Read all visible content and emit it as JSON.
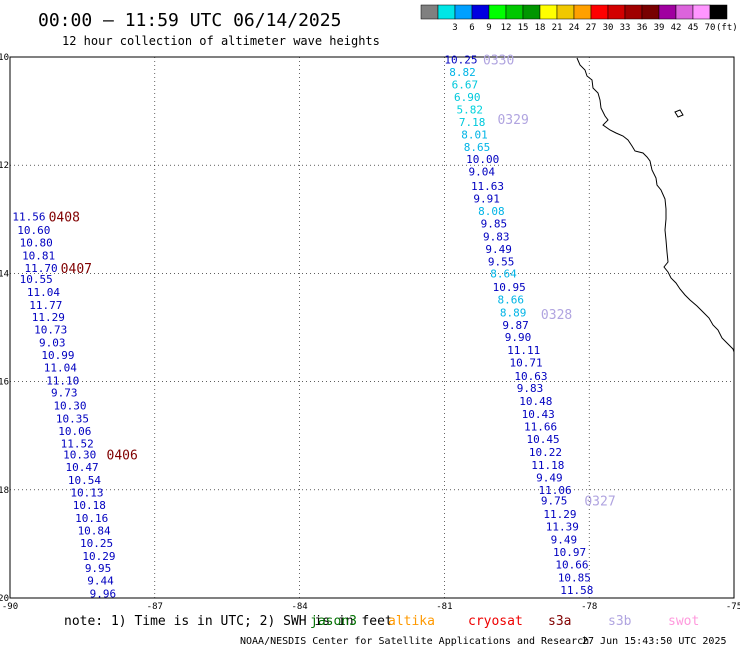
{
  "header": {
    "title": "00:00 – 11:59 UTC 06/14/2025",
    "subtitle": "12 hour collection of altimeter wave heights"
  },
  "legend": {
    "unit": "(ft)",
    "swatches": [
      {
        "color": "#808080",
        "label": ""
      },
      {
        "color": "#00e6e6",
        "label": "3"
      },
      {
        "color": "#00a0ff",
        "label": "6"
      },
      {
        "color": "#0000e0",
        "label": "9"
      },
      {
        "color": "#00ff00",
        "label": "12"
      },
      {
        "color": "#00c800",
        "label": "15"
      },
      {
        "color": "#009600",
        "label": "18"
      },
      {
        "color": "#ffff00",
        "label": "21"
      },
      {
        "color": "#f0c800",
        "label": "24"
      },
      {
        "color": "#ffa000",
        "label": "27"
      },
      {
        "color": "#ff0000",
        "label": "30"
      },
      {
        "color": "#d20000",
        "label": "33"
      },
      {
        "color": "#a00000",
        "label": "36"
      },
      {
        "color": "#780000",
        "label": "39"
      },
      {
        "color": "#a000a0",
        "label": "42"
      },
      {
        "color": "#dc64dc",
        "label": "45"
      },
      {
        "color": "#ff96ff",
        "label": "70"
      },
      {
        "color": "#000000",
        "label": ""
      }
    ]
  },
  "axes": {
    "lat_labels": [
      "-10",
      "-12",
      "-14",
      "-16",
      "-18",
      "-20"
    ],
    "lon_labels": [
      "-90",
      "-87",
      "-84",
      "-81",
      "-78",
      "-75"
    ]
  },
  "chart_data": {
    "type": "scatter",
    "x_range": [
      -90,
      -75
    ],
    "y_range": [
      -20,
      -10
    ],
    "grid": true,
    "tracks": [
      {
        "id": "0408",
        "color": "#800000",
        "label_lon": -89.2,
        "label_lat": -12.95
      },
      {
        "id": "0407",
        "color": "#800000",
        "label_lon": -88.95,
        "label_lat": -13.9
      },
      {
        "id": "0406",
        "color": "#800000",
        "label_lon": -88.0,
        "label_lat": -17.35
      },
      {
        "id": "0330",
        "color": "#b0a4e0",
        "label_lon": -80.2,
        "label_lat": -10.05
      },
      {
        "id": "0329",
        "color": "#b0a4e0",
        "label_lon": -79.9,
        "label_lat": -11.15
      },
      {
        "id": "0328",
        "color": "#b0a4e0",
        "label_lon": -79.0,
        "label_lat": -14.75
      },
      {
        "id": "0327",
        "color": "#b0a4e0",
        "label_lon": -78.1,
        "label_lat": -18.2
      }
    ],
    "points": [
      {
        "v": "10.25",
        "c": "#0000c0",
        "lon": -81.0,
        "lat": -10.05
      },
      {
        "v": "8.82",
        "c": "#00b4e6",
        "lon": -80.9,
        "lat": -10.28
      },
      {
        "v": "6.67",
        "c": "#00c8dc",
        "lon": -80.85,
        "lat": -10.51
      },
      {
        "v": "6.90",
        "c": "#00c8dc",
        "lon": -80.8,
        "lat": -10.74
      },
      {
        "v": "5.82",
        "c": "#00d2dc",
        "lon": -80.75,
        "lat": -10.97
      },
      {
        "v": "7.18",
        "c": "#00c8dc",
        "lon": -80.7,
        "lat": -11.2
      },
      {
        "v": "8.01",
        "c": "#00b4e6",
        "lon": -80.65,
        "lat": -11.43
      },
      {
        "v": "8.65",
        "c": "#00b4e6",
        "lon": -80.6,
        "lat": -11.66
      },
      {
        "v": "10.00",
        "c": "#0000c0",
        "lon": -80.55,
        "lat": -11.89
      },
      {
        "v": "9.04",
        "c": "#0000c0",
        "lon": -80.5,
        "lat": -12.12
      },
      {
        "v": "11.63",
        "c": "#0000c0",
        "lon": -80.45,
        "lat": -12.38
      },
      {
        "v": "9.91",
        "c": "#0000c0",
        "lon": -80.4,
        "lat": -12.62
      },
      {
        "v": "8.08",
        "c": "#00b4e6",
        "lon": -80.3,
        "lat": -12.85
      },
      {
        "v": "9.85",
        "c": "#0000c0",
        "lon": -80.25,
        "lat": -13.08
      },
      {
        "v": "9.83",
        "c": "#0000c0",
        "lon": -80.2,
        "lat": -13.32
      },
      {
        "v": "9.49",
        "c": "#0000c0",
        "lon": -80.15,
        "lat": -13.55
      },
      {
        "v": "9.55",
        "c": "#0000c0",
        "lon": -80.1,
        "lat": -13.78
      },
      {
        "v": "8.64",
        "c": "#00b4e6",
        "lon": -80.05,
        "lat": -14.0
      },
      {
        "v": "10.95",
        "c": "#0000c0",
        "lon": -80.0,
        "lat": -14.25
      },
      {
        "v": "8.66",
        "c": "#00b4e6",
        "lon": -79.9,
        "lat": -14.48
      },
      {
        "v": "8.89",
        "c": "#00b4e6",
        "lon": -79.85,
        "lat": -14.72
      },
      {
        "v": "9.87",
        "c": "#0000c0",
        "lon": -79.8,
        "lat": -14.95
      },
      {
        "v": "9.90",
        "c": "#0000c0",
        "lon": -79.75,
        "lat": -15.18
      },
      {
        "v": "11.11",
        "c": "#0000c0",
        "lon": -79.7,
        "lat": -15.42
      },
      {
        "v": "10.71",
        "c": "#0000c0",
        "lon": -79.65,
        "lat": -15.65
      },
      {
        "v": "10.63",
        "c": "#0000c0",
        "lon": -79.55,
        "lat": -15.9
      },
      {
        "v": "9.83",
        "c": "#0000c0",
        "lon": -79.5,
        "lat": -16.12
      },
      {
        "v": "10.48",
        "c": "#0000c0",
        "lon": -79.45,
        "lat": -16.36
      },
      {
        "v": "10.43",
        "c": "#0000c0",
        "lon": -79.4,
        "lat": -16.6
      },
      {
        "v": "11.66",
        "c": "#0000c0",
        "lon": -79.35,
        "lat": -16.83
      },
      {
        "v": "10.45",
        "c": "#0000c0",
        "lon": -79.3,
        "lat": -17.06
      },
      {
        "v": "10.22",
        "c": "#0000c0",
        "lon": -79.25,
        "lat": -17.3
      },
      {
        "v": "11.18",
        "c": "#0000c0",
        "lon": -79.2,
        "lat": -17.54
      },
      {
        "v": "9.49",
        "c": "#0000c0",
        "lon": -79.1,
        "lat": -17.77
      },
      {
        "v": "11.06",
        "c": "#0000c0",
        "lon": -79.05,
        "lat": -18.0
      },
      {
        "v": "9.75",
        "c": "#0000c0",
        "lon": -79.0,
        "lat": -18.2
      },
      {
        "v": "11.29",
        "c": "#0000c0",
        "lon": -78.95,
        "lat": -18.45
      },
      {
        "v": "11.39",
        "c": "#0000c0",
        "lon": -78.9,
        "lat": -18.68
      },
      {
        "v": "9.49",
        "c": "#0000c0",
        "lon": -78.8,
        "lat": -18.92
      },
      {
        "v": "10.97",
        "c": "#0000c0",
        "lon": -78.75,
        "lat": -19.15
      },
      {
        "v": "10.66",
        "c": "#0000c0",
        "lon": -78.7,
        "lat": -19.38
      },
      {
        "v": "10.85",
        "c": "#0000c0",
        "lon": -78.65,
        "lat": -19.62
      },
      {
        "v": "11.58",
        "c": "#0000c0",
        "lon": -78.6,
        "lat": -19.85
      },
      {
        "v": "11.56",
        "c": "#0000c0",
        "lon": -89.95,
        "lat": -12.95
      },
      {
        "v": "10.60",
        "c": "#0000c0",
        "lon": -89.85,
        "lat": -13.2
      },
      {
        "v": "10.80",
        "c": "#0000c0",
        "lon": -89.8,
        "lat": -13.43
      },
      {
        "v": "10.81",
        "c": "#0000c0",
        "lon": -89.75,
        "lat": -13.67
      },
      {
        "v": "11.70",
        "c": "#0000c0",
        "lon": -89.7,
        "lat": -13.9
      },
      {
        "v": "10.55",
        "c": "#0000c0",
        "lon": -89.8,
        "lat": -14.1
      },
      {
        "v": "11.04",
        "c": "#0000c0",
        "lon": -89.65,
        "lat": -14.34
      },
      {
        "v": "11.77",
        "c": "#0000c0",
        "lon": -89.6,
        "lat": -14.58
      },
      {
        "v": "11.29",
        "c": "#0000c0",
        "lon": -89.55,
        "lat": -14.81
      },
      {
        "v": "10.73",
        "c": "#0000c0",
        "lon": -89.5,
        "lat": -15.04
      },
      {
        "v": "9.03",
        "c": "#0000c0",
        "lon": -89.4,
        "lat": -15.28
      },
      {
        "v": "10.99",
        "c": "#0000c0",
        "lon": -89.35,
        "lat": -15.51
      },
      {
        "v": "11.04",
        "c": "#0000c0",
        "lon": -89.3,
        "lat": -15.74
      },
      {
        "v": "11.10",
        "c": "#0000c0",
        "lon": -89.25,
        "lat": -15.98
      },
      {
        "v": "9.73",
        "c": "#0000c0",
        "lon": -89.15,
        "lat": -16.2
      },
      {
        "v": "10.30",
        "c": "#0000c0",
        "lon": -89.1,
        "lat": -16.44
      },
      {
        "v": "10.35",
        "c": "#0000c0",
        "lon": -89.05,
        "lat": -16.68
      },
      {
        "v": "10.06",
        "c": "#0000c0",
        "lon": -89.0,
        "lat": -16.91
      },
      {
        "v": "11.52",
        "c": "#0000c0",
        "lon": -88.95,
        "lat": -17.14
      },
      {
        "v": "10.30",
        "c": "#0000c0",
        "lon": -88.9,
        "lat": -17.35
      },
      {
        "v": "10.47",
        "c": "#0000c0",
        "lon": -88.85,
        "lat": -17.58
      },
      {
        "v": "10.54",
        "c": "#0000c0",
        "lon": -88.8,
        "lat": -17.82
      },
      {
        "v": "10.13",
        "c": "#0000c0",
        "lon": -88.75,
        "lat": -18.05
      },
      {
        "v": "10.18",
        "c": "#0000c0",
        "lon": -88.7,
        "lat": -18.28
      },
      {
        "v": "10.16",
        "c": "#0000c0",
        "lon": -88.65,
        "lat": -18.52
      },
      {
        "v": "10.84",
        "c": "#0000c0",
        "lon": -88.6,
        "lat": -18.75
      },
      {
        "v": "10.25",
        "c": "#0000c0",
        "lon": -88.55,
        "lat": -18.98
      },
      {
        "v": "10.29",
        "c": "#0000c0",
        "lon": -88.5,
        "lat": -19.22
      },
      {
        "v": "9.95",
        "c": "#0000c0",
        "lon": -88.45,
        "lat": -19.45
      },
      {
        "v": "9.44",
        "c": "#0000c0",
        "lon": -88.4,
        "lat": -19.68
      },
      {
        "v": "9.96",
        "c": "#0000c0",
        "lon": -88.35,
        "lat": -19.92
      }
    ]
  },
  "footer": {
    "note_text": "note: 1) Time is in UTC; 2) SWH is in feet",
    "satellites": [
      {
        "name": "jason3",
        "color": "#007000"
      },
      {
        "name": "altika",
        "color": "#ff9900"
      },
      {
        "name": "cryosat",
        "color": "#ee0000"
      },
      {
        "name": "s3a",
        "color": "#800000"
      },
      {
        "name": "s3b",
        "color": "#b0a4e0"
      },
      {
        "name": "swot",
        "color": "#ff99dd"
      }
    ],
    "credit": "NOAA/NESDIS Center for Satellite Applications and Research",
    "timestamp": "27 Jun 15:43:50 UTC 2025"
  }
}
